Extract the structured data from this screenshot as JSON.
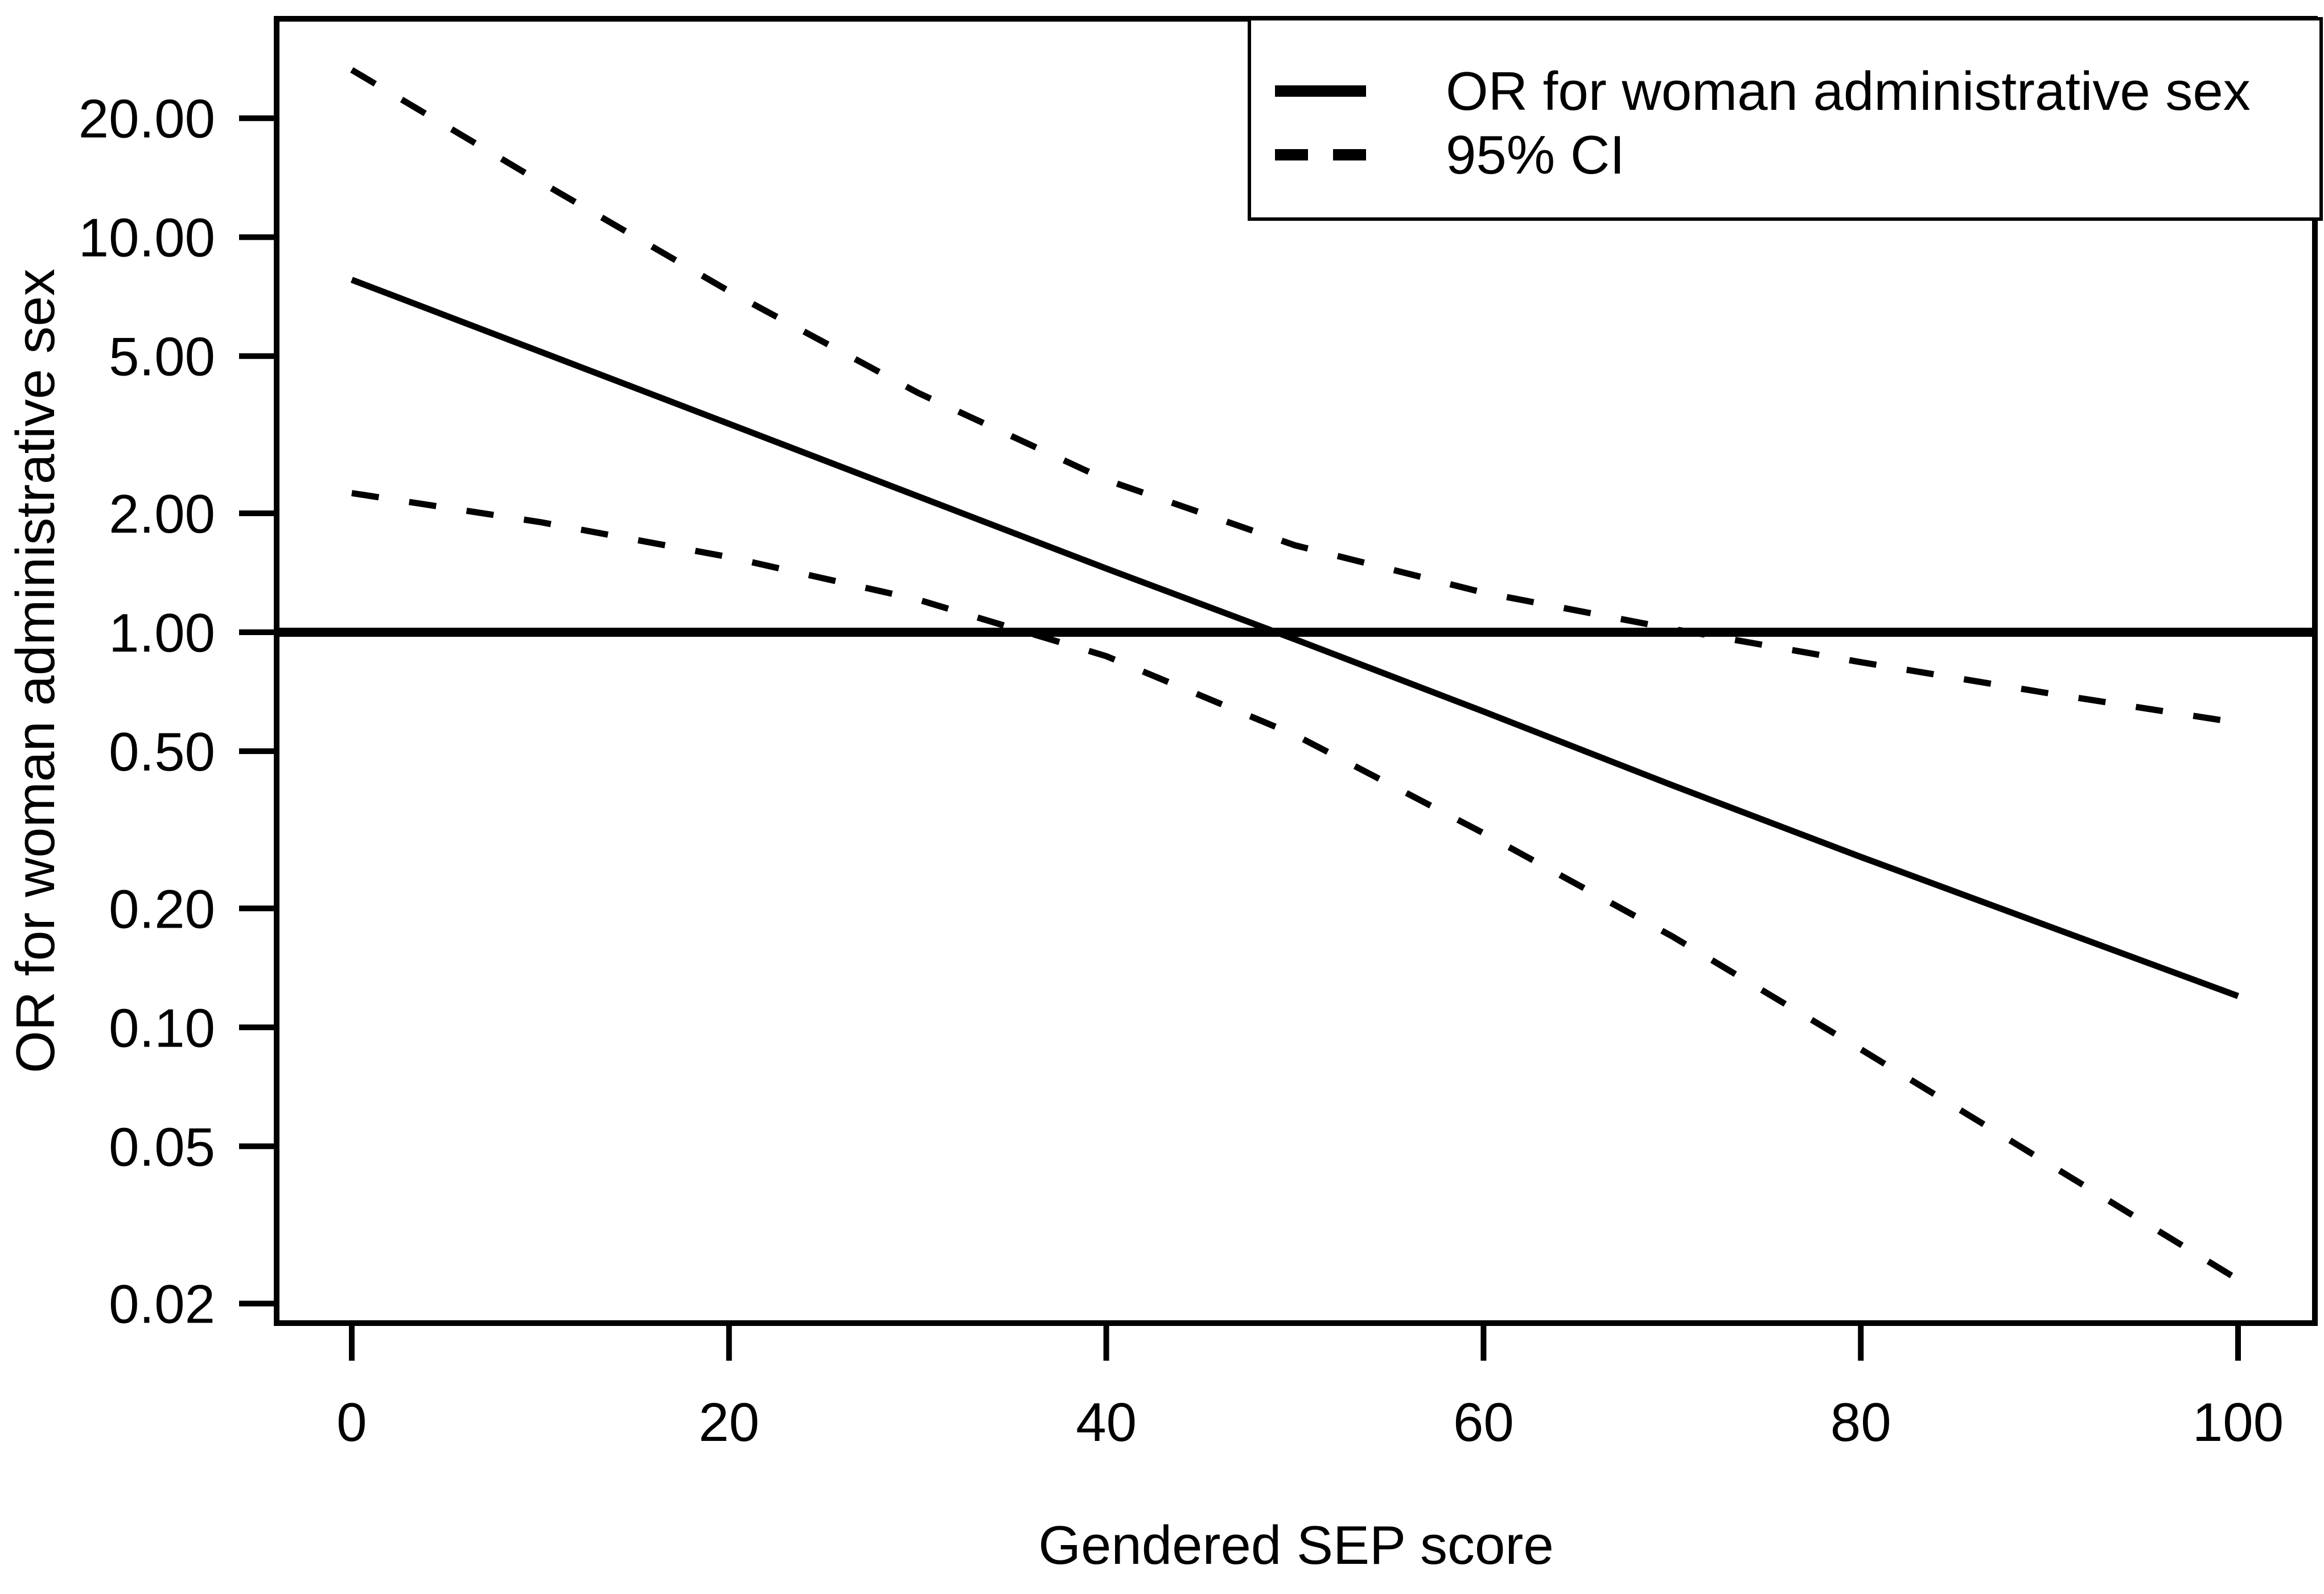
{
  "figure": {
    "background_color": "#ffffff",
    "ink_color": "#000000"
  },
  "chart_data": {
    "type": "line",
    "title": "",
    "xlabel": "Gendered SEP score",
    "ylabel": "OR for woman administrative sex",
    "x_scale": "linear",
    "y_scale": "log10",
    "xlim": [
      -4,
      104
    ],
    "ylim": [
      0.018,
      35.7
    ],
    "grid": false,
    "x_tick_labels": [
      "0",
      "20",
      "40",
      "60",
      "80",
      "100"
    ],
    "x_tick_values": [
      0,
      20,
      40,
      60,
      80,
      100
    ],
    "y_tick_labels": [
      "20.00",
      "10.00",
      "5.00",
      "2.00",
      "1.00",
      "0.50",
      "0.20",
      "0.10",
      "0.05",
      "0.02"
    ],
    "y_tick_values": [
      20,
      10,
      5,
      2,
      1,
      0.5,
      0.2,
      0.1,
      0.05,
      0.02
    ],
    "reference_line_or": 1.0,
    "or_crosses_one_at_x": 49,
    "x": [
      0,
      10,
      20,
      30,
      40,
      50,
      60,
      70,
      80,
      90,
      100
    ],
    "series": [
      {
        "name": "OR for woman administrative sex",
        "style": "solid",
        "values": [
          7.8,
          5.13,
          3.37,
          2.21,
          1.45,
          0.96,
          0.63,
          0.41,
          0.27,
          0.18,
          0.12
        ]
      },
      {
        "name": "95% CI upper",
        "style": "dashed",
        "values": [
          26.5,
          13.8,
          7.3,
          4.04,
          2.43,
          1.66,
          1.26,
          1.02,
          0.84,
          0.7,
          0.59
        ]
      },
      {
        "name": "95% CI lower",
        "style": "dashed",
        "values": [
          2.25,
          1.9,
          1.55,
          1.21,
          0.87,
          0.55,
          0.31,
          0.17,
          0.088,
          0.045,
          0.023
        ]
      }
    ],
    "legend": {
      "position": "top-right",
      "entries": [
        {
          "label": "OR for woman administrative sex",
          "style": "solid"
        },
        {
          "label": "95% CI",
          "style": "dashed"
        }
      ]
    }
  }
}
